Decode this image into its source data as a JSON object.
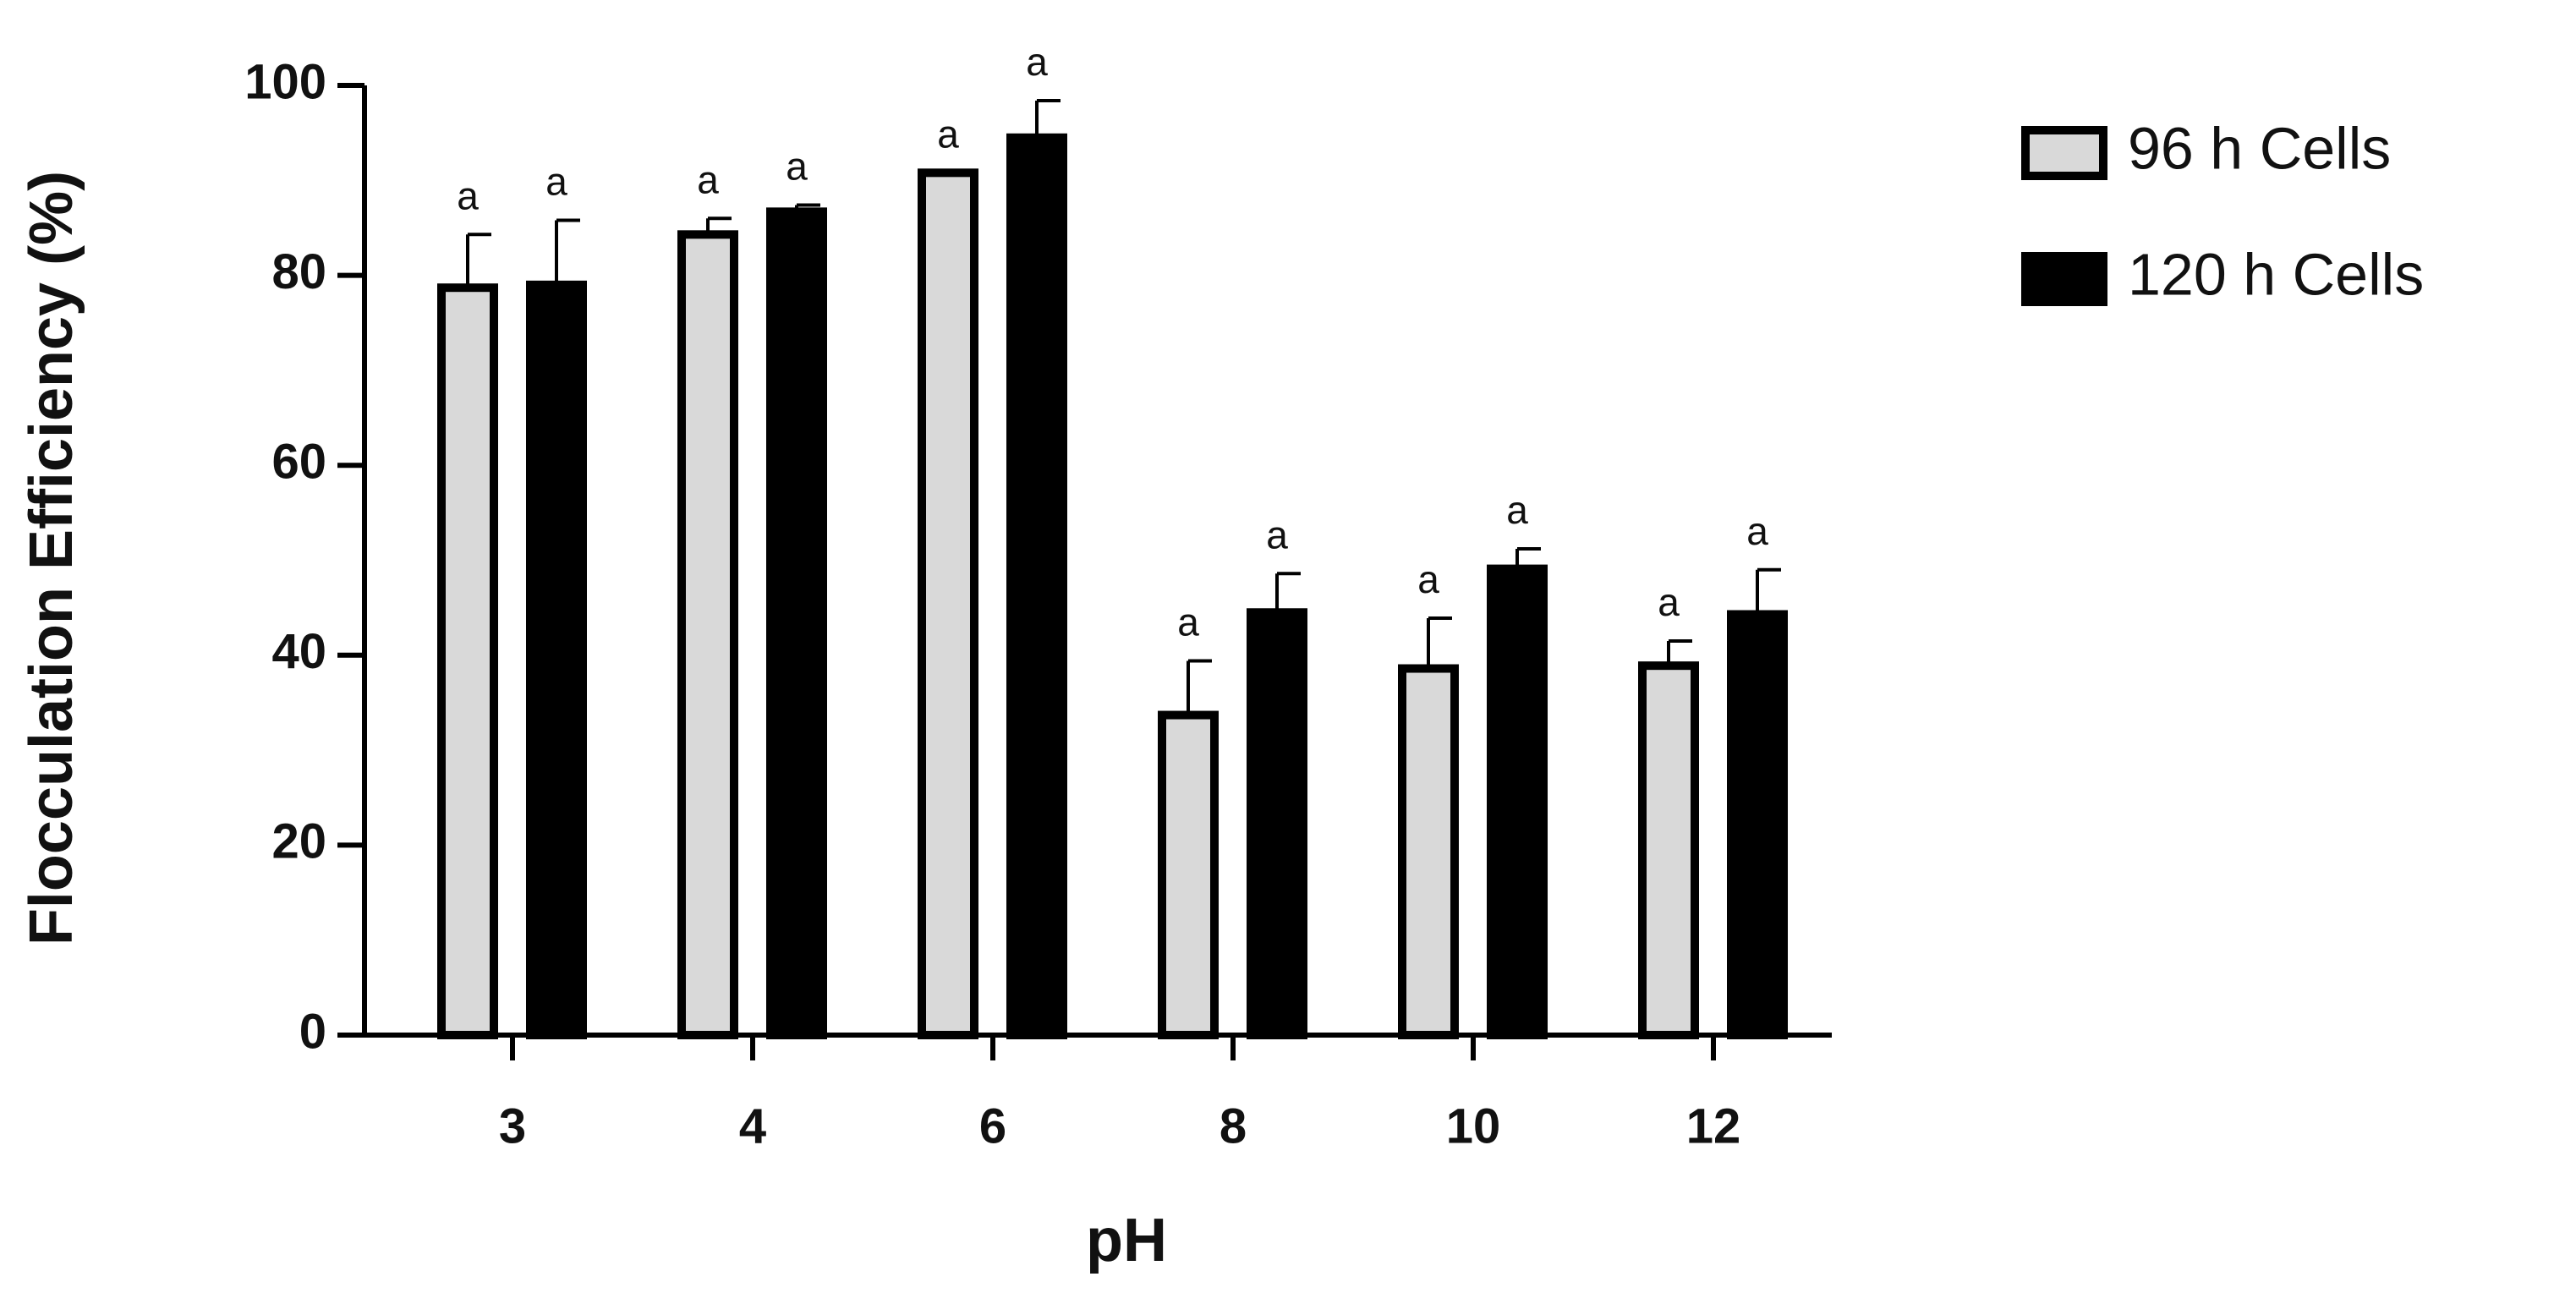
{
  "chart_data": {
    "type": "bar",
    "x_label": "pH",
    "y_label": "Flocculation  Efficiency (%)",
    "categories": [
      "3",
      "4",
      "6",
      "8",
      "10",
      "12"
    ],
    "series": [
      {
        "name": "96 h Cells",
        "color": "#d9d9d9",
        "values": [
          78.7,
          84.3,
          90.8,
          33.7,
          38.6,
          38.9
        ],
        "errors": [
          5.6,
          1.7,
          0,
          5.7,
          5.3,
          2.6
        ],
        "letters": [
          "a",
          "a",
          "a",
          "a",
          "a",
          "a"
        ]
      },
      {
        "name": "120 h Cells",
        "color": "#000000",
        "values": [
          79,
          86.7,
          94.5,
          44.5,
          49.1,
          44.3
        ],
        "errors": [
          6.8,
          0.7,
          3.9,
          4.1,
          2.1,
          4.7
        ],
        "letters": [
          "a",
          "a",
          "a",
          "a",
          "a",
          "a"
        ]
      }
    ],
    "ylim": [
      0,
      100
    ],
    "yticks": [
      0,
      20,
      40,
      60,
      80,
      100
    ],
    "grid": false,
    "legend": "right"
  }
}
